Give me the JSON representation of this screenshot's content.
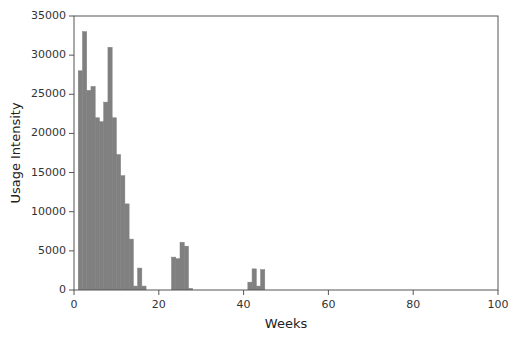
{
  "chart_data": {
    "type": "bar",
    "xlabel": "Weeks",
    "ylabel": "Usage Intensity",
    "x": [
      1,
      2,
      3,
      4,
      5,
      6,
      7,
      8,
      9,
      10,
      11,
      12,
      13,
      14,
      15,
      16,
      17,
      18,
      19,
      20,
      21,
      22,
      23,
      24,
      25,
      26,
      27,
      28,
      29,
      30,
      31,
      32,
      33,
      34,
      35,
      36,
      37,
      38,
      39,
      40,
      41,
      42,
      43,
      44,
      45,
      46,
      47,
      48,
      49,
      50,
      51,
      52,
      53,
      54,
      55,
      56,
      57,
      58,
      59,
      60,
      61,
      62,
      63,
      64,
      65,
      66,
      67,
      68,
      69,
      70,
      71,
      72,
      73,
      74,
      75,
      76,
      77,
      78,
      79,
      80,
      81,
      82,
      83,
      84,
      85,
      86,
      87,
      88,
      89,
      90,
      91,
      92,
      93,
      94,
      95,
      96,
      97,
      98,
      99,
      100
    ],
    "values": [
      28000,
      33000,
      25500,
      26000,
      22000,
      21500,
      24000,
      31000,
      22000,
      17300,
      14600,
      11000,
      6500,
      500,
      2800,
      500,
      0,
      0,
      0,
      0,
      0,
      0,
      4200,
      4000,
      6100,
      5600,
      200,
      0,
      0,
      0,
      0,
      0,
      0,
      0,
      0,
      0,
      0,
      0,
      0,
      0,
      1000,
      2700,
      500,
      2600,
      0,
      0,
      0,
      0,
      0,
      0,
      0,
      0,
      0,
      0,
      0,
      0,
      0,
      0,
      0,
      0,
      0,
      0,
      0,
      0,
      0,
      0,
      0,
      0,
      0,
      0,
      0,
      0,
      0,
      0,
      0,
      0,
      0,
      0,
      0,
      0,
      0,
      0,
      0,
      0,
      0,
      0,
      0,
      0,
      0,
      0,
      0,
      0,
      0,
      0,
      0,
      0,
      0,
      0,
      0,
      0
    ],
    "color": "#808080",
    "xlim": [
      0,
      100
    ],
    "ylim": [
      0,
      35000
    ],
    "xticks": [
      0,
      20,
      40,
      60,
      80,
      100
    ],
    "yticks": [
      0,
      5000,
      10000,
      15000,
      20000,
      25000,
      30000,
      35000
    ],
    "grid": false
  }
}
